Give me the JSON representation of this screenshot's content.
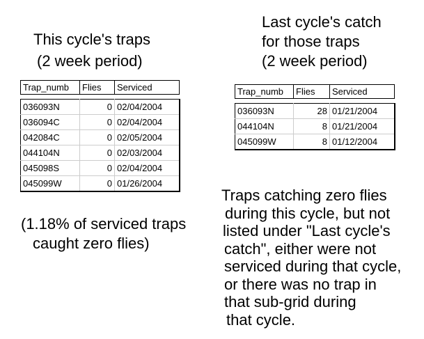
{
  "left": {
    "title": [
      "This cycle's traps",
      "(2 week period)"
    ],
    "table": {
      "headers": [
        "Trap_numb",
        "Flies",
        "Serviced"
      ],
      "rows": [
        [
          "036093N",
          0,
          "02/04/2004"
        ],
        [
          "036094C",
          0,
          "02/04/2004"
        ],
        [
          "042084C",
          0,
          "02/05/2004"
        ],
        [
          "044104N",
          0,
          "02/03/2004"
        ],
        [
          "045098S",
          0,
          "02/04/2004"
        ],
        [
          "045099W",
          0,
          "01/26/2004"
        ]
      ]
    },
    "note": [
      "(1.18% of serviced traps",
      "caught zero flies)"
    ]
  },
  "right": {
    "title": [
      "Last cycle's catch",
      "for those traps",
      "(2 week period)"
    ],
    "table": {
      "headers": [
        "Trap_numb",
        "Flies",
        "Serviced"
      ],
      "rows": [
        [
          "036093N",
          28,
          "01/21/2004"
        ],
        [
          "044104N",
          8,
          "01/21/2004"
        ],
        [
          "045099W",
          8,
          "01/12/2004"
        ]
      ]
    },
    "note": [
      "Traps catching zero flies",
      "during this cycle, but not",
      "listed under \"Last cycle's",
      "catch\", either were not",
      "serviced during that cycle,",
      "or there was no trap in",
      "that sub-grid during",
      "that cycle."
    ]
  }
}
